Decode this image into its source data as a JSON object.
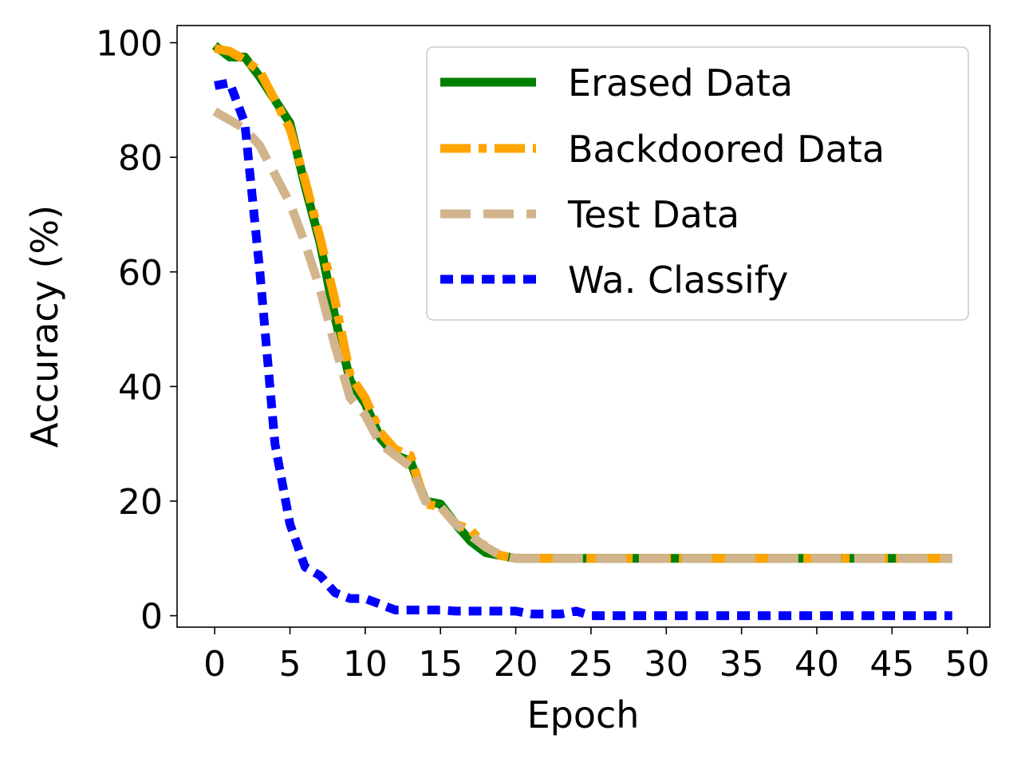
{
  "chart_data": {
    "type": "line",
    "title": "",
    "xlabel": "Epoch",
    "ylabel": "Accuracy (%)",
    "xlim": [
      -2.5,
      51.5
    ],
    "ylim": [
      -2,
      103
    ],
    "xticks": [
      0,
      5,
      10,
      15,
      20,
      25,
      30,
      35,
      40,
      45,
      50
    ],
    "yticks": [
      0,
      20,
      40,
      60,
      80,
      100
    ],
    "grid": false,
    "legend_position": "top-right",
    "series": [
      {
        "name": "Erased Data",
        "color": "#008000",
        "style": "solid",
        "x": [
          0,
          1,
          2,
          3,
          4,
          5,
          6,
          7,
          8,
          9,
          10,
          11,
          12,
          13,
          14,
          15,
          16,
          17,
          18,
          19,
          20,
          21,
          22,
          23,
          24,
          25,
          26,
          27,
          28,
          29,
          30,
          31,
          32,
          33,
          34,
          35,
          36,
          37,
          38,
          39,
          40,
          41,
          42,
          43,
          44,
          45,
          46,
          47,
          48,
          49
        ],
        "y": [
          99.5,
          97.5,
          97.5,
          94,
          90,
          86,
          75,
          65,
          52,
          41,
          37,
          31,
          28,
          27,
          20,
          19.5,
          16,
          13,
          11,
          10.5,
          10,
          10,
          10,
          10,
          10,
          10,
          10,
          10,
          10,
          10,
          10,
          10,
          10,
          10,
          10,
          10,
          10,
          10,
          10,
          10,
          10,
          10,
          10,
          10,
          10,
          10,
          10,
          10,
          10,
          10
        ]
      },
      {
        "name": "Backdoored Data",
        "color": "#FFA500",
        "style": "dashdot",
        "x": [
          0,
          1,
          2,
          3,
          4,
          5,
          6,
          7,
          8,
          9,
          10,
          11,
          12,
          13,
          14,
          15,
          16,
          17,
          18,
          19,
          20,
          21,
          22,
          23,
          24,
          25,
          26,
          27,
          28,
          29,
          30,
          31,
          32,
          33,
          34,
          35,
          36,
          37,
          38,
          39,
          40,
          41,
          42,
          43,
          44,
          45,
          46,
          47,
          48,
          49
        ],
        "y": [
          99,
          98.5,
          97,
          95,
          90,
          85,
          76,
          66,
          55,
          42,
          38,
          32,
          29,
          28,
          19.5,
          19,
          16,
          15,
          12,
          10.5,
          10,
          10,
          10,
          10,
          10,
          10,
          10,
          10,
          10,
          10,
          10,
          10,
          10,
          10,
          10,
          10,
          10,
          10,
          10,
          10,
          10,
          10,
          10,
          10,
          10,
          10,
          10,
          10,
          10,
          10
        ]
      },
      {
        "name": "Test Data",
        "color": "#D2B48C",
        "style": "dashed",
        "x": [
          0,
          1,
          2,
          3,
          4,
          5,
          6,
          7,
          8,
          9,
          10,
          11,
          12,
          13,
          14,
          15,
          16,
          17,
          18,
          19,
          20,
          21,
          22,
          23,
          24,
          25,
          26,
          27,
          28,
          29,
          30,
          31,
          32,
          33,
          34,
          35,
          36,
          37,
          38,
          39,
          40,
          41,
          42,
          43,
          44,
          45,
          46,
          47,
          48,
          49
        ],
        "y": [
          88,
          86.5,
          85,
          82,
          77,
          72,
          65,
          57,
          47,
          38,
          35,
          30,
          28,
          26,
          20,
          19,
          16,
          14,
          12,
          10.5,
          10,
          10,
          10,
          10,
          10,
          10,
          10,
          10,
          10,
          10,
          10,
          10,
          10,
          10,
          10,
          10,
          10,
          10,
          10,
          10,
          10,
          10,
          10,
          10,
          10,
          10,
          10,
          10,
          10,
          10
        ]
      },
      {
        "name": "Wa. Classify",
        "color": "#0000FF",
        "style": "dotted",
        "x": [
          0,
          1,
          2,
          3,
          4,
          5,
          6,
          7,
          8,
          9,
          10,
          11,
          12,
          13,
          14,
          15,
          16,
          17,
          18,
          19,
          20,
          21,
          22,
          23,
          24,
          25,
          26,
          27,
          28,
          29,
          30,
          31,
          32,
          33,
          34,
          35,
          36,
          37,
          38,
          39,
          40,
          41,
          42,
          43,
          44,
          45,
          46,
          47,
          48,
          49
        ],
        "y": [
          92.5,
          93,
          86,
          60,
          30,
          16,
          8.5,
          7,
          4,
          3,
          3,
          2,
          1,
          1,
          1,
          1,
          0.8,
          0.8,
          0.8,
          0.8,
          0.8,
          0.3,
          0.3,
          0.3,
          0.8,
          0,
          0,
          0,
          0,
          0,
          0,
          0,
          0,
          0,
          0,
          0,
          0,
          0,
          0,
          0,
          0,
          0,
          0,
          0,
          0,
          0,
          0,
          0,
          0,
          0
        ]
      }
    ]
  }
}
